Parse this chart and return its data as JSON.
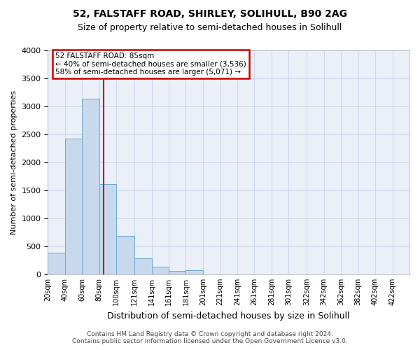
{
  "title": "52, FALSTAFF ROAD, SHIRLEY, SOLIHULL, B90 2AG",
  "subtitle": "Size of property relative to semi-detached houses in Solihull",
  "xlabel": "Distribution of semi-detached houses by size in Solihull",
  "ylabel": "Number of semi-detached properties",
  "footer": "Contains HM Land Registry data © Crown copyright and database right 2024.\nContains public sector information licensed under the Open Government Licence v3.0.",
  "bin_edges": [
    20,
    40,
    60,
    80,
    100,
    121,
    141,
    161,
    181,
    201,
    221,
    241,
    261,
    281,
    301,
    322,
    342,
    362,
    382,
    402,
    422,
    442
  ],
  "bar_heights": [
    380,
    2420,
    3130,
    1610,
    690,
    290,
    140,
    60,
    70,
    0,
    0,
    0,
    0,
    0,
    0,
    0,
    0,
    0,
    0,
    0,
    0
  ],
  "bar_color": "#c8d9ee",
  "bar_edgecolor": "#6aaad4",
  "tick_labels": [
    "20sqm",
    "40sqm",
    "60sqm",
    "80sqm",
    "100sqm",
    "121sqm",
    "141sqm",
    "161sqm",
    "181sqm",
    "201sqm",
    "221sqm",
    "241sqm",
    "261sqm",
    "281sqm",
    "301sqm",
    "322sqm",
    "342sqm",
    "362sqm",
    "382sqm",
    "402sqm",
    "422sqm"
  ],
  "tick_positions": [
    20,
    40,
    60,
    80,
    100,
    121,
    141,
    161,
    181,
    201,
    221,
    241,
    261,
    281,
    301,
    322,
    342,
    362,
    382,
    402,
    422
  ],
  "property_size": 85,
  "red_line_color": "#cc0000",
  "ylim": [
    0,
    4000
  ],
  "xlim": [
    20,
    442
  ],
  "yticks": [
    0,
    500,
    1000,
    1500,
    2000,
    2500,
    3000,
    3500,
    4000
  ],
  "annotation_title": "52 FALSTAFF ROAD: 85sqm",
  "annotation_line1": "← 40% of semi-detached houses are smaller (3,536)",
  "annotation_line2": "58% of semi-detached houses are larger (5,071) →",
  "annotation_box_color": "#ffffff",
  "annotation_box_edgecolor": "#cc0000",
  "grid_color": "#c8d4e8",
  "bg_color": "#eaeff8"
}
